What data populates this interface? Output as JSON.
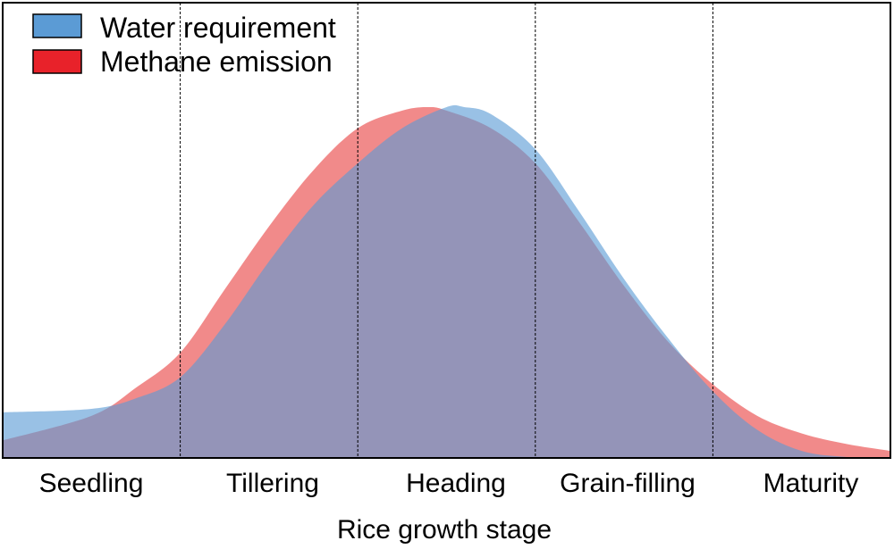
{
  "chart_data": {
    "type": "area",
    "xlabel": "Rice growth stage",
    "ylabel": "",
    "categories": [
      "Seedling",
      "Tillering",
      "Heading",
      "Grain-filling",
      "Maturity"
    ],
    "xlim": [
      0,
      5
    ],
    "ylim": [
      0,
      1
    ],
    "grid": {
      "vertical_stage_dividers": true,
      "style": "dashed"
    },
    "legend_position": "top-left",
    "series": [
      {
        "name": "Water requirement",
        "color": "#5b9bd5",
        "x": [
          0,
          0.5,
          0.75,
          1.0,
          1.25,
          1.5,
          1.75,
          2.0,
          2.25,
          2.5,
          2.6,
          2.75,
          3.0,
          3.25,
          3.5,
          3.75,
          4.0,
          4.25,
          4.5,
          4.75,
          5.0
        ],
        "values": [
          0.13,
          0.14,
          0.17,
          0.23,
          0.38,
          0.56,
          0.72,
          0.84,
          0.94,
          1.0,
          1.0,
          0.98,
          0.88,
          0.7,
          0.51,
          0.34,
          0.19,
          0.08,
          0.02,
          0.003,
          0.0
        ]
      },
      {
        "name": "Methane emission",
        "color": "#f08080",
        "x": [
          0,
          0.5,
          0.75,
          1.0,
          1.25,
          1.5,
          1.75,
          2.0,
          2.25,
          2.4,
          2.5,
          2.75,
          3.0,
          3.25,
          3.5,
          3.75,
          4.0,
          4.25,
          4.5,
          4.75,
          5.0
        ],
        "values": [
          0.05,
          0.12,
          0.2,
          0.3,
          0.48,
          0.66,
          0.82,
          0.94,
          0.99,
          1.0,
          0.99,
          0.94,
          0.84,
          0.67,
          0.49,
          0.33,
          0.21,
          0.12,
          0.07,
          0.04,
          0.02
        ]
      }
    ]
  }
}
